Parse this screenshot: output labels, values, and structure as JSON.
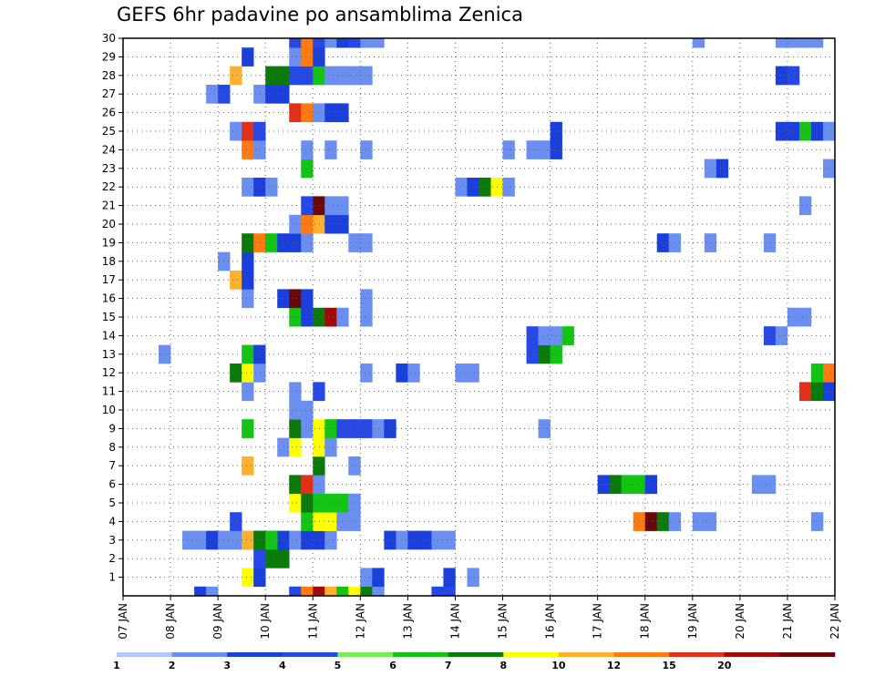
{
  "title": "GEFS 6hr padavine po ansamblima Zenica",
  "chart_data": {
    "type": "heatmap",
    "title": "GEFS 6hr padavine po ansamblima Zenica",
    "x_ticks": [
      "07 JAN",
      "08 JAN",
      "09 JAN",
      "10 JAN",
      "11 JAN",
      "12 JAN",
      "13 JAN",
      "14 JAN",
      "15 JAN",
      "16 JAN",
      "17 JAN",
      "18 JAN",
      "19 JAN",
      "20 JAN",
      "21 JAN",
      "22 JAN"
    ],
    "xlim_days": [
      0,
      15
    ],
    "y_ticks": [
      1,
      2,
      3,
      4,
      5,
      6,
      7,
      8,
      9,
      10,
      11,
      12,
      13,
      14,
      15,
      16,
      17,
      18,
      19,
      20,
      21,
      22,
      23,
      24,
      25,
      26,
      27,
      28,
      29,
      30
    ],
    "ylim": [
      0,
      30
    ],
    "grid": true,
    "legend_position": "bottom",
    "colorbar": {
      "labels": [
        "1",
        "2",
        "3",
        "4",
        "5",
        "6",
        "7",
        "8",
        "10",
        "12",
        "15",
        "20"
      ],
      "colors": [
        "#b3c6f7",
        "#6b8ff0",
        "#1a3fdb",
        "#2548e6",
        "#7aea5a",
        "#14c414",
        "#0a7a0a",
        "#ffff00",
        "#ffb030",
        "#ff7a10",
        "#e03018",
        "#a00a0a",
        "#6a0808"
      ]
    },
    "cells": [
      [
        29.5,
        0,
        2
      ],
      [
        29.75,
        0,
        1
      ],
      [
        31.5,
        0,
        3
      ],
      [
        31.75,
        0,
        9
      ],
      [
        32,
        0,
        11
      ],
      [
        32.25,
        0,
        8
      ],
      [
        32.5,
        0,
        5
      ],
      [
        32.75,
        0,
        7
      ],
      [
        33,
        0,
        6
      ],
      [
        33.25,
        0,
        1
      ],
      [
        34.5,
        0,
        3
      ],
      [
        34.75,
        0,
        3
      ],
      [
        30.5,
        1,
        7
      ],
      [
        30.75,
        1,
        2
      ],
      [
        33,
        1,
        1
      ],
      [
        33.25,
        1,
        2
      ],
      [
        34.75,
        1,
        2
      ],
      [
        35.25,
        1,
        1
      ],
      [
        30.75,
        2,
        3
      ],
      [
        31,
        2,
        6
      ],
      [
        31.25,
        2,
        6
      ],
      [
        29.25,
        3,
        1
      ],
      [
        29.5,
        3,
        1
      ],
      [
        29.75,
        3,
        2
      ],
      [
        30,
        3,
        1
      ],
      [
        30.5,
        3,
        1
      ],
      [
        30.75,
        3,
        2
      ],
      [
        31,
        3,
        2
      ],
      [
        31.25,
        3,
        2
      ],
      [
        31.5,
        3,
        1
      ],
      [
        31.75,
        3,
        2
      ],
      [
        32,
        3,
        2
      ],
      [
        32.25,
        3,
        1
      ],
      [
        33.5,
        3,
        2
      ],
      [
        33.75,
        3,
        1
      ],
      [
        34,
        3,
        2
      ],
      [
        34.25,
        3,
        2
      ],
      [
        34.5,
        3,
        1
      ],
      [
        34.75,
        3,
        1
      ],
      [
        30.25,
        3,
        1
      ],
      [
        30.5,
        3,
        8
      ],
      [
        30.75,
        3,
        6
      ],
      [
        31,
        3,
        5
      ],
      [
        30.25,
        4,
        3
      ],
      [
        31.75,
        4,
        5
      ],
      [
        32,
        4,
        7
      ],
      [
        32.25,
        4,
        7
      ],
      [
        32.5,
        4,
        1
      ],
      [
        32.75,
        4,
        1
      ],
      [
        38.75,
        4,
        9
      ],
      [
        39,
        4,
        12
      ],
      [
        39.25,
        4,
        6
      ],
      [
        39.5,
        4,
        1
      ],
      [
        40,
        4,
        1
      ],
      [
        40.25,
        4,
        1
      ],
      [
        42.5,
        4,
        1
      ],
      [
        31.5,
        5,
        7
      ],
      [
        31.75,
        5,
        6
      ],
      [
        32,
        5,
        5
      ],
      [
        32.25,
        5,
        5
      ],
      [
        32.5,
        5,
        5
      ],
      [
        32.75,
        5,
        1
      ],
      [
        31.5,
        6,
        6
      ],
      [
        31.75,
        6,
        10
      ],
      [
        32,
        6,
        1
      ],
      [
        38,
        6,
        2
      ],
      [
        38.25,
        6,
        6
      ],
      [
        38.5,
        6,
        5
      ],
      [
        38.75,
        6,
        5
      ],
      [
        39,
        6,
        2
      ],
      [
        41.25,
        6,
        1
      ],
      [
        41.5,
        6,
        1
      ],
      [
        30.5,
        7,
        8
      ],
      [
        32,
        7,
        6
      ],
      [
        32.75,
        7,
        1
      ],
      [
        31.25,
        8,
        1
      ],
      [
        31.5,
        8,
        7
      ],
      [
        32,
        8,
        7
      ],
      [
        32.25,
        8,
        1
      ],
      [
        30.5,
        9,
        5
      ],
      [
        31.5,
        9,
        6
      ],
      [
        31.75,
        9,
        1
      ],
      [
        32,
        9,
        7
      ],
      [
        32.25,
        9,
        5
      ],
      [
        32.5,
        9,
        3
      ],
      [
        32.75,
        9,
        3
      ],
      [
        33,
        9,
        3
      ],
      [
        33.25,
        9,
        1
      ],
      [
        33.5,
        9,
        2
      ],
      [
        36.75,
        9,
        1
      ],
      [
        31.5,
        10,
        1
      ],
      [
        31.75,
        10,
        1
      ],
      [
        30.5,
        11,
        1
      ],
      [
        31.5,
        11,
        1
      ],
      [
        32,
        11,
        3
      ],
      [
        42.25,
        11,
        10
      ],
      [
        42.5,
        11,
        6
      ],
      [
        42.75,
        11,
        2
      ],
      [
        43,
        11,
        1
      ],
      [
        30.25,
        12,
        6
      ],
      [
        30.5,
        12,
        7
      ],
      [
        30.75,
        12,
        1
      ],
      [
        33,
        12,
        1
      ],
      [
        33.75,
        12,
        2
      ],
      [
        34,
        12,
        1
      ],
      [
        35,
        12,
        1
      ],
      [
        35.25,
        12,
        1
      ],
      [
        42.5,
        12,
        5
      ],
      [
        42.75,
        12,
        9
      ],
      [
        43,
        12,
        6
      ],
      [
        28.75,
        13,
        1
      ],
      [
        30.5,
        13,
        5
      ],
      [
        30.75,
        13,
        2
      ],
      [
        36.5,
        13,
        3
      ],
      [
        36.75,
        13,
        6
      ],
      [
        37,
        13,
        5
      ],
      [
        36.5,
        14,
        3
      ],
      [
        36.75,
        14,
        1
      ],
      [
        37,
        14,
        1
      ],
      [
        37.25,
        14,
        5
      ],
      [
        41.5,
        14,
        3
      ],
      [
        41.75,
        14,
        1
      ],
      [
        31.5,
        15,
        5
      ],
      [
        31.75,
        15,
        2
      ],
      [
        32,
        15,
        6
      ],
      [
        32.25,
        15,
        11
      ],
      [
        32.5,
        15,
        1
      ],
      [
        33,
        15,
        1
      ],
      [
        42,
        15,
        1
      ],
      [
        42.25,
        15,
        1
      ],
      [
        30.5,
        16,
        1
      ],
      [
        31.25,
        16,
        2
      ],
      [
        31.5,
        16,
        13
      ],
      [
        31.75,
        16,
        2
      ],
      [
        33,
        16,
        1
      ],
      [
        30.25,
        17,
        8
      ],
      [
        30.5,
        17,
        2
      ],
      [
        30,
        18,
        1
      ],
      [
        30.5,
        18,
        2
      ],
      [
        30.5,
        19,
        6
      ],
      [
        30.75,
        19,
        9
      ],
      [
        31,
        19,
        5
      ],
      [
        31.25,
        19,
        2
      ],
      [
        31.5,
        19,
        2
      ],
      [
        31.75,
        19,
        1
      ],
      [
        32.75,
        19,
        1
      ],
      [
        33,
        19,
        1
      ],
      [
        39.25,
        19,
        2
      ],
      [
        39.5,
        19,
        1
      ],
      [
        40.25,
        19,
        1
      ],
      [
        41.5,
        19,
        1
      ],
      [
        31.5,
        20,
        1
      ],
      [
        31.75,
        20,
        9
      ],
      [
        32,
        20,
        8
      ],
      [
        32.25,
        20,
        2
      ],
      [
        32.5,
        20,
        2
      ],
      [
        31.75,
        21,
        3
      ],
      [
        32,
        21,
        12
      ],
      [
        32.25,
        21,
        1
      ],
      [
        32.5,
        21,
        1
      ],
      [
        42.25,
        21,
        1
      ],
      [
        30.5,
        22,
        1
      ],
      [
        30.75,
        22,
        2
      ],
      [
        31,
        22,
        1
      ],
      [
        35,
        22,
        1
      ],
      [
        35.25,
        22,
        2
      ],
      [
        35.5,
        22,
        6
      ],
      [
        35.75,
        22,
        7
      ],
      [
        36,
        22,
        1
      ],
      [
        31.75,
        23,
        5
      ],
      [
        40.25,
        23,
        1
      ],
      [
        40.5,
        23,
        2
      ],
      [
        42.75,
        23,
        1
      ],
      [
        30.5,
        24,
        9
      ],
      [
        30.75,
        24,
        1
      ],
      [
        31.75,
        24,
        1
      ],
      [
        32.25,
        24,
        1
      ],
      [
        33,
        24,
        1
      ],
      [
        36,
        24,
        1
      ],
      [
        36.5,
        24,
        1
      ],
      [
        36.75,
        24,
        1
      ],
      [
        37,
        24,
        2
      ],
      [
        30.25,
        25,
        1
      ],
      [
        30.5,
        25,
        10
      ],
      [
        30.75,
        25,
        3
      ],
      [
        37,
        25,
        2
      ],
      [
        41.75,
        25,
        2
      ],
      [
        42,
        25,
        2
      ],
      [
        42.25,
        25,
        5
      ],
      [
        42.5,
        25,
        2
      ],
      [
        42.75,
        25,
        1
      ],
      [
        43,
        25,
        1
      ],
      [
        31.5,
        26,
        10
      ],
      [
        31.75,
        26,
        9
      ],
      [
        32,
        26,
        1
      ],
      [
        32.25,
        26,
        2
      ],
      [
        32.5,
        26,
        2
      ],
      [
        29.75,
        27,
        1
      ],
      [
        30,
        27,
        3
      ],
      [
        30.75,
        27,
        1
      ],
      [
        31,
        27,
        2
      ],
      [
        31.25,
        27,
        2
      ],
      [
        30.25,
        28,
        8
      ],
      [
        31,
        28,
        6
      ],
      [
        31.25,
        28,
        6
      ],
      [
        31.5,
        28,
        3
      ],
      [
        31.75,
        28,
        3
      ],
      [
        32,
        28,
        5
      ],
      [
        32.25,
        28,
        1
      ],
      [
        32.5,
        28,
        1
      ],
      [
        32.75,
        28,
        1
      ],
      [
        33,
        28,
        1
      ],
      [
        41.75,
        28,
        2
      ],
      [
        42,
        28,
        3
      ],
      [
        30.5,
        29,
        2
      ],
      [
        31.5,
        29,
        1
      ],
      [
        31.75,
        29,
        9
      ],
      [
        32,
        29,
        2
      ],
      [
        31.5,
        30,
        3
      ],
      [
        31.75,
        30,
        9
      ],
      [
        32,
        30,
        3
      ],
      [
        32.25,
        30,
        1
      ],
      [
        32.5,
        30,
        2
      ],
      [
        32.75,
        30,
        3
      ],
      [
        33,
        30,
        1
      ],
      [
        33.25,
        30,
        1
      ],
      [
        40,
        30,
        1
      ],
      [
        41.75,
        30,
        1
      ],
      [
        42,
        30,
        1
      ],
      [
        42.25,
        30,
        1
      ],
      [
        42.5,
        30,
        1
      ]
    ]
  }
}
